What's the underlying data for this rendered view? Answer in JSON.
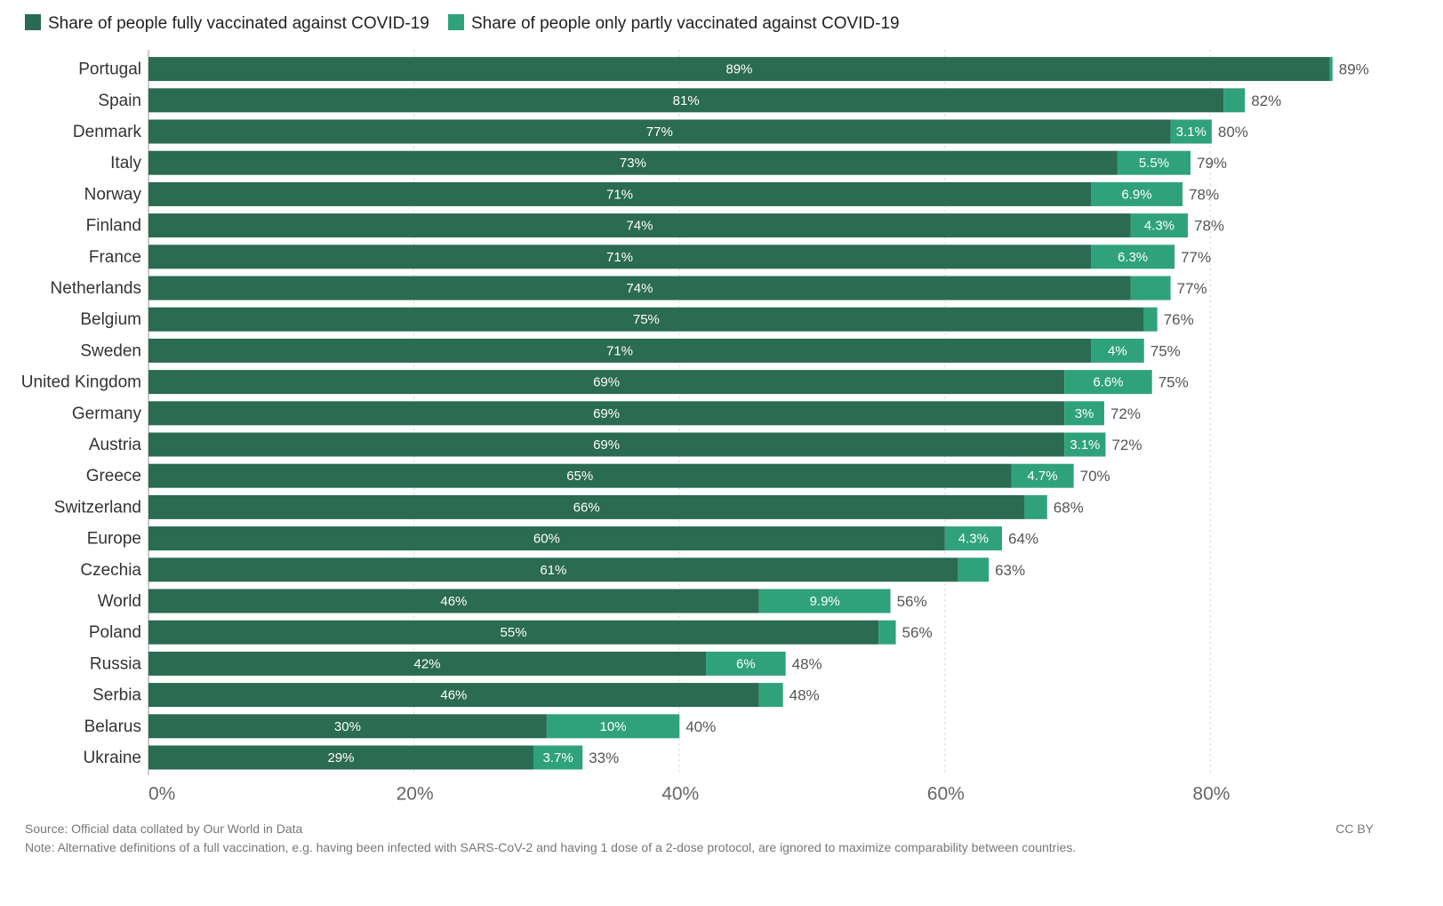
{
  "chart_data": {
    "type": "bar",
    "orientation": "horizontal",
    "stacked": true,
    "categories": [
      "Portugal",
      "Spain",
      "Denmark",
      "Italy",
      "Norway",
      "Finland",
      "France",
      "Netherlands",
      "Belgium",
      "Sweden",
      "United Kingdom",
      "Germany",
      "Austria",
      "Greece",
      "Switzerland",
      "Europe",
      "Czechia",
      "World",
      "Poland",
      "Russia",
      "Serbia",
      "Belarus",
      "Ukraine"
    ],
    "series": [
      {
        "name": "Share of people fully vaccinated against COVID-19",
        "color": "#2a6b52",
        "values": [
          89,
          81,
          77,
          73,
          71,
          74,
          71,
          74,
          75,
          71,
          69,
          69,
          69,
          65,
          66,
          60,
          61,
          46,
          55,
          42,
          46,
          30,
          29
        ],
        "labels": [
          "89%",
          "81%",
          "77%",
          "73%",
          "71%",
          "74%",
          "71%",
          "74%",
          "75%",
          "71%",
          "69%",
          "69%",
          "69%",
          "65%",
          "66%",
          "60%",
          "61%",
          "46%",
          "55%",
          "42%",
          "46%",
          "30%",
          "29%"
        ]
      },
      {
        "name": "Share of people only partly vaccinated against COVID-19",
        "color": "#2fa27c",
        "values": [
          0.2,
          1.6,
          3.1,
          5.5,
          6.9,
          4.3,
          6.3,
          3,
          1,
          4,
          6.6,
          3,
          3.1,
          4.7,
          1.7,
          4.3,
          2.3,
          9.9,
          1.3,
          6,
          1.8,
          10,
          3.7
        ],
        "labels": [
          "",
          "",
          "3.1%",
          "5.5%",
          "6.9%",
          "4.3%",
          "6.3%",
          "",
          "",
          "4%",
          "6.6%",
          "3%",
          "3.1%",
          "4.7%",
          "",
          "4.3%",
          "",
          "9.9%",
          "",
          "6%",
          "",
          "10%",
          "3.7%"
        ]
      }
    ],
    "totals": [
      "89%",
      "82%",
      "80%",
      "79%",
      "78%",
      "78%",
      "77%",
      "77%",
      "76%",
      "75%",
      "75%",
      "72%",
      "72%",
      "70%",
      "68%",
      "64%",
      "63%",
      "56%",
      "56%",
      "48%",
      "48%",
      "40%",
      "33%"
    ],
    "x_ticks": [
      0,
      20,
      40,
      60,
      80
    ],
    "x_tick_labels": [
      "0%",
      "20%",
      "40%",
      "60%",
      "80%"
    ],
    "xlim": [
      0,
      89
    ],
    "grid": "vertical dashed",
    "legend_position": "top-left",
    "title": "",
    "xlabel": "",
    "ylabel": ""
  },
  "footer": {
    "source": "Source: Official data collated by Our World in Data",
    "note": "Note: Alternative definitions of a full vaccination, e.g. having been infected with SARS-CoV-2 and having 1 dose of a 2-dose protocol, are ignored to maximize comparability between countries.",
    "license": "CC BY"
  }
}
